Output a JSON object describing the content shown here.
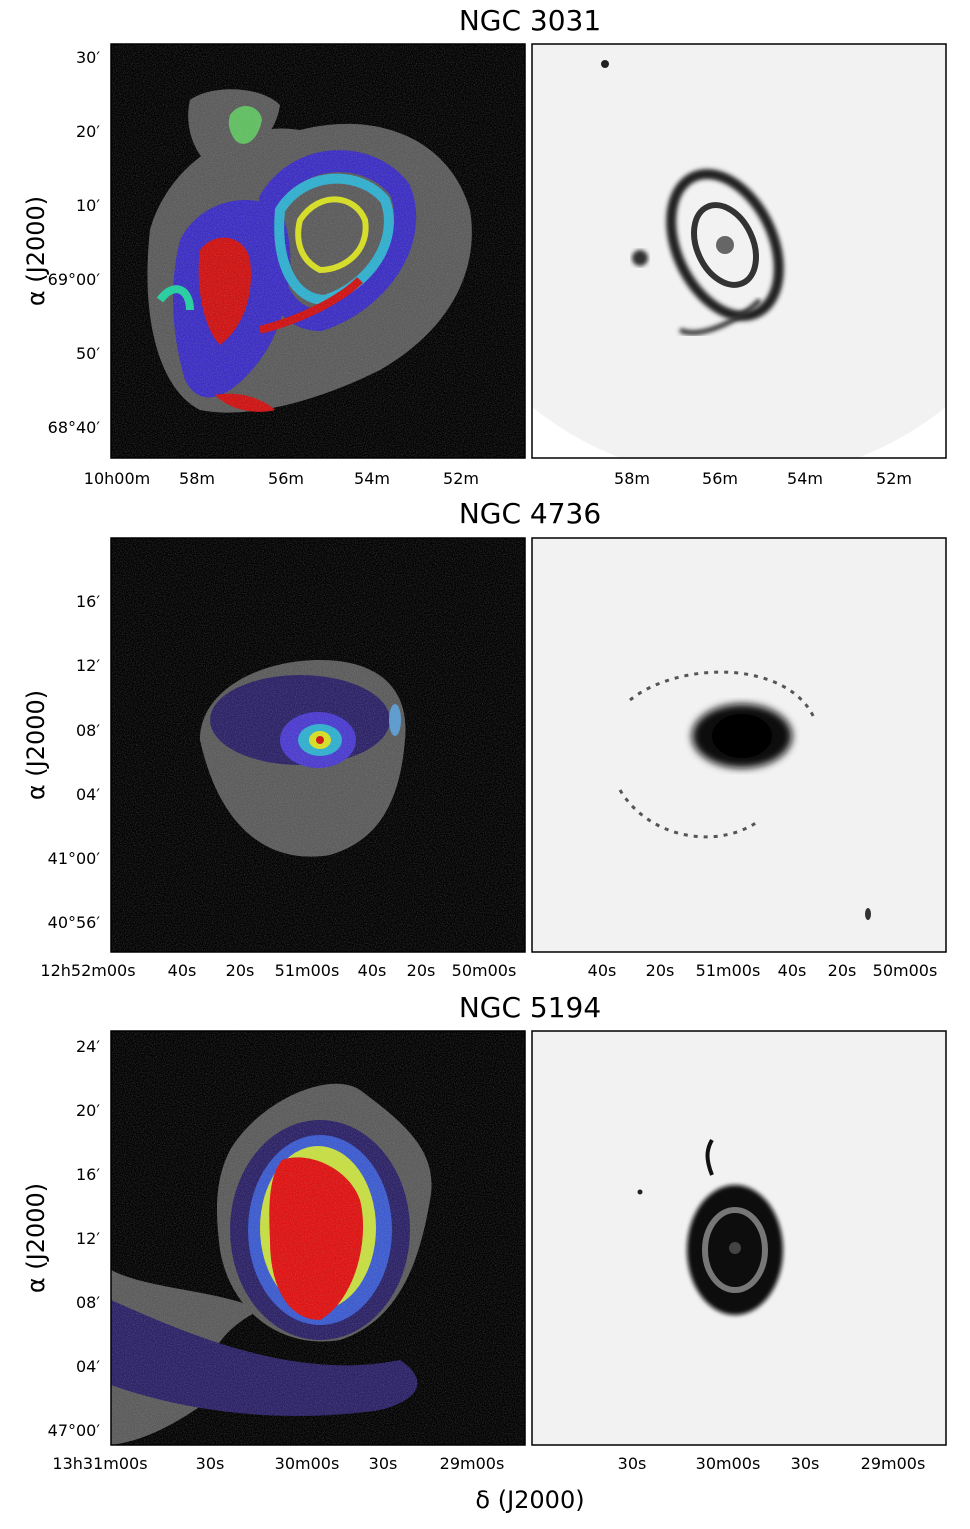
{
  "axis_labels": {
    "y": "α (J2000)",
    "x": "δ (J2000)"
  },
  "colors": {
    "background": "#000000",
    "sky": "#f0f0f0",
    "halo": "#707070"
  },
  "panels": [
    {
      "title": "NGC 3031",
      "y_ticks": [
        "30′",
        "20′",
        "10′",
        "69°00′",
        "50′",
        "68°40′"
      ],
      "x_ticks_left": [
        "10h00m",
        "58m",
        "56m",
        "54m",
        "52m"
      ],
      "x_ticks_right": [
        "58m",
        "56m",
        "54m",
        "52m"
      ]
    },
    {
      "title": "NGC 4736",
      "y_ticks": [
        "16′",
        "12′",
        "08′",
        "04′",
        "41°00′",
        "40°56′"
      ],
      "x_ticks_left": [
        "12h52m00s",
        "40s",
        "20s",
        "51m00s",
        "40s",
        "20s",
        "50m00s"
      ],
      "x_ticks_right": [
        "40s",
        "20s",
        "51m00s",
        "40s",
        "20s",
        "50m00s"
      ]
    },
    {
      "title": "NGC 5194",
      "y_ticks": [
        "24′",
        "20′",
        "16′",
        "12′",
        "08′",
        "04′",
        "47°00′"
      ],
      "x_ticks_left": [
        "13h31m00s",
        "30s",
        "30m00s",
        "30s",
        "29m00s"
      ],
      "x_ticks_right": [
        "30s",
        "30m00s",
        "30s",
        "29m00s"
      ]
    }
  ]
}
